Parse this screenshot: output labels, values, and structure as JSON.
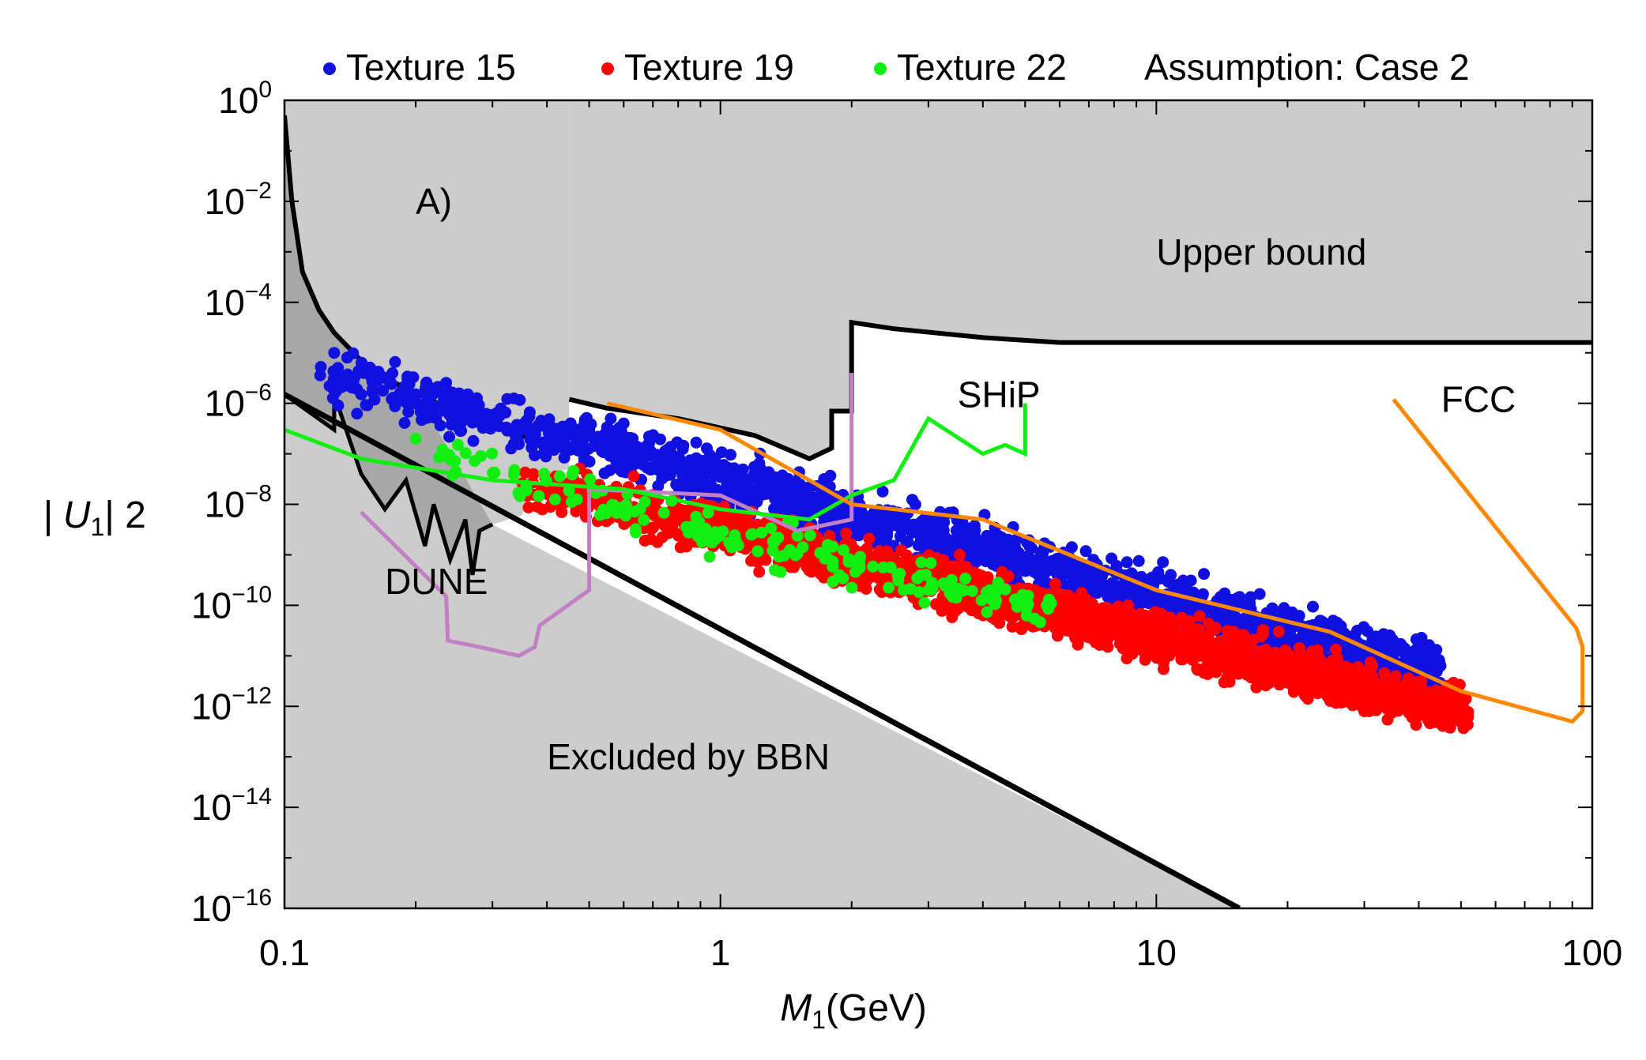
{
  "chart_data": {
    "type": "scatter",
    "title": "Assumption: Case 2",
    "xlabel": "M",
    "xlabel_sub": "1",
    "xlabel_unit": "(GeV)",
    "ylabel": "| U",
    "ylabel_sub": "1",
    "ylabel_sup": "| 2",
    "x_scale": "log",
    "y_scale": "log",
    "xlim": [
      0.1,
      100
    ],
    "ylim": [
      1e-16,
      1
    ],
    "x_ticks": [
      {
        "value": 0.1,
        "label": "0.1"
      },
      {
        "value": 1,
        "label": "1"
      },
      {
        "value": 10,
        "label": "10"
      },
      {
        "value": 100,
        "label": "100"
      }
    ],
    "y_ticks": [
      {
        "value": 1,
        "base": "10",
        "exp": "0"
      },
      {
        "value": 0.01,
        "base": "10",
        "exp": "−2"
      },
      {
        "value": 0.0001,
        "base": "10",
        "exp": "−4"
      },
      {
        "value": 1e-06,
        "base": "10",
        "exp": "−6"
      },
      {
        "value": 1e-08,
        "base": "10",
        "exp": "−8"
      },
      {
        "value": 1e-10,
        "base": "10",
        "exp": "−10"
      },
      {
        "value": 1e-12,
        "base": "10",
        "exp": "−12"
      },
      {
        "value": 1e-14,
        "base": "10",
        "exp": "−14"
      },
      {
        "value": 1e-16,
        "base": "10",
        "exp": "−16"
      }
    ],
    "grid": false,
    "legend_position": "top",
    "legend": [
      {
        "label": "Texture 15",
        "color": "#1010e0"
      },
      {
        "label": "Texture 19",
        "color": "#ff0000"
      },
      {
        "label": "Texture 22",
        "color": "#11ee11"
      }
    ],
    "colors": {
      "excluded_fill": "#cccccc",
      "bbn_dark_fill": "#a8a8a8",
      "boundary": "#000000",
      "texture15": "#1010e0",
      "texture19": "#ff0000",
      "texture22": "#11ee11",
      "dune": "#c27fc6",
      "ship": "#11ee11",
      "fcc": "#ff8800"
    },
    "annotations": [
      {
        "text": "A)",
        "x": 0.2,
        "y": 0.01
      },
      {
        "text": "Upper bound",
        "x": 10,
        "y": 0.001
      },
      {
        "text": "Excluded by BBN",
        "x": 0.4,
        "y": 1e-13
      },
      {
        "text": "DUNE",
        "x": 0.17,
        "y": 3e-10
      },
      {
        "text": "SHiP",
        "x": 3.5,
        "y": 1.5e-06
      },
      {
        "text": "FCC",
        "x": 45,
        "y": 1.2e-06
      }
    ],
    "regions": {
      "upper_bound_boundary": [
        [
          0.45,
          1.2e-06
        ],
        [
          0.55,
          8e-07
        ],
        [
          0.8,
          5e-07
        ],
        [
          1.2,
          2.3e-07
        ],
        [
          1.6,
          8e-08
        ],
        [
          1.8,
          1.3e-07
        ],
        [
          1.8,
          7e-07
        ],
        [
          2.0,
          7e-07
        ],
        [
          2.0,
          4e-05
        ],
        [
          2.5,
          3e-05
        ],
        [
          4.0,
          2e-05
        ],
        [
          6.0,
          1.6e-05
        ],
        [
          100,
          1.6e-05
        ]
      ],
      "bbn_line": [
        [
          0.1,
          1.5e-06
        ],
        [
          15.5,
          1e-16
        ]
      ],
      "bbn_boundary_left": [
        [
          0.1,
          0.5
        ],
        [
          0.104,
          0.01
        ],
        [
          0.11,
          0.0004
        ],
        [
          0.12,
          7e-05
        ],
        [
          0.13,
          2.5e-05
        ],
        [
          0.15,
          7e-06
        ],
        [
          0.18,
          2.5e-06
        ],
        [
          0.2,
          1.6e-06
        ],
        [
          0.25,
          6.5e-07
        ],
        [
          0.3,
          3.7e-07
        ],
        [
          0.35,
          2.3e-07
        ],
        [
          0.4,
          1.5e-07
        ],
        [
          0.45,
          1.1e-07
        ]
      ],
      "bbn_jagged": [
        [
          0.1,
          1.5e-06
        ],
        [
          0.13,
          3e-07
        ],
        [
          0.13,
          1.5e-06
        ],
        [
          0.15,
          4e-08
        ],
        [
          0.17,
          8e-09
        ],
        [
          0.19,
          3e-08
        ],
        [
          0.21,
          1.5e-09
        ],
        [
          0.22,
          1e-08
        ],
        [
          0.24,
          8e-10
        ],
        [
          0.26,
          5e-09
        ],
        [
          0.27,
          4e-10
        ],
        [
          0.28,
          3e-09
        ],
        [
          0.3,
          4e-09
        ]
      ]
    },
    "sensitivity_curves": [
      {
        "name": "DUNE",
        "color": "#c27fc6",
        "points": [
          [
            0.15,
            7e-09
          ],
          [
            0.235,
            1.5e-10
          ],
          [
            0.237,
            2e-11
          ],
          [
            0.28,
            1.5e-11
          ],
          [
            0.345,
            1e-11
          ],
          [
            0.375,
            1.5e-11
          ],
          [
            0.385,
            4e-11
          ],
          [
            0.5,
            2e-10
          ],
          [
            0.5,
            2e-08
          ],
          [
            1.0,
            1.5e-08
          ],
          [
            1.5,
            3e-09
          ],
          [
            2.0,
            5e-09
          ],
          [
            2.0,
            1.5e-06
          ],
          [
            2.0,
            4e-06
          ]
        ]
      },
      {
        "name": "SHiP",
        "color": "#11ee11",
        "points": [
          [
            0.1,
            3e-07
          ],
          [
            0.15,
            8e-08
          ],
          [
            0.3,
            3e-08
          ],
          [
            0.6,
            2e-08
          ],
          [
            1.0,
            8e-09
          ],
          [
            1.6,
            5e-09
          ],
          [
            2.0,
            1.5e-08
          ],
          [
            2.5,
            3e-08
          ],
          [
            3.0,
            5e-07
          ],
          [
            4.0,
            1e-07
          ],
          [
            4.5,
            1.5e-07
          ],
          [
            5.0,
            1e-07
          ],
          [
            5.0,
            1e-06
          ]
        ]
      },
      {
        "name": "FCC",
        "color": "#ff8800",
        "points": [
          [
            0.55,
            1e-06
          ],
          [
            1.0,
            3e-07
          ],
          [
            2.0,
            1e-08
          ],
          [
            4.0,
            5e-09
          ],
          [
            10.0,
            2e-10
          ],
          [
            25.0,
            3e-11
          ],
          [
            50.0,
            2e-12
          ],
          [
            90.0,
            5e-13
          ],
          [
            95.0,
            8e-13
          ],
          [
            95.0,
            1.5e-11
          ],
          [
            92.0,
            3.5e-11
          ],
          [
            35.0,
            1.2e-06
          ]
        ]
      }
    ],
    "scatter_series": [
      {
        "name": "Texture 15",
        "color": "#1010e0",
        "n_points": 1700,
        "x_range": [
          0.12,
          45
        ],
        "band_center_at_x1": 3e-08,
        "band_slope_decades_per_decade": -2.3,
        "band_spread_decades": 1.0,
        "outliers": [
          [
            0.13,
            1e-05
          ],
          [
            0.15,
            1.5e-06
          ],
          [
            0.5,
            3e-07
          ],
          [
            0.6,
            4e-07
          ],
          [
            42,
            6e-12
          ]
        ]
      },
      {
        "name": "Texture 19",
        "color": "#ff0000",
        "n_points": 2200,
        "x_range": [
          0.35,
          52
        ],
        "band_center_at_x1": 3e-09,
        "band_slope_decades_per_decade": -2.1,
        "band_spread_decades": 0.9,
        "outliers": [
          [
            50,
            5e-13
          ],
          [
            30,
            8e-13
          ]
        ]
      },
      {
        "name": "Texture 22",
        "color": "#11ee11",
        "n_points": 180,
        "x_range": [
          0.2,
          6
        ],
        "band_center_at_x1": 3e-09,
        "band_slope_decades_per_decade": -2.2,
        "band_spread_decades": 0.9,
        "outliers": [
          [
            0.2,
            2e-07
          ],
          [
            0.25,
            1.5e-07
          ]
        ]
      }
    ]
  }
}
